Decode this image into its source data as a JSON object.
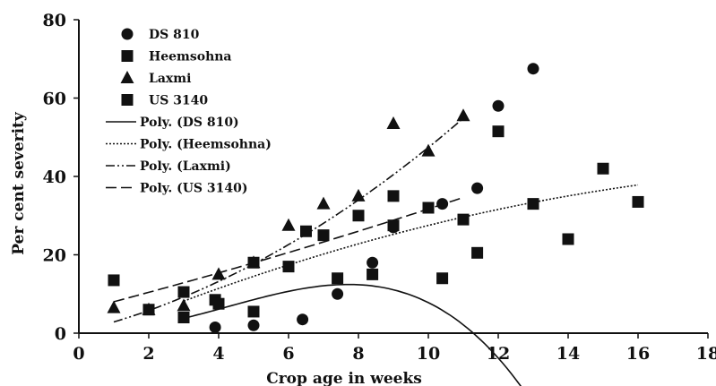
{
  "chart_data": {
    "type": "scatter",
    "title": "",
    "xlabel": "Crop age in  weeks",
    "ylabel": "Per cent severity",
    "xlim": [
      0,
      18
    ],
    "ylim": [
      0,
      80
    ],
    "x_ticks": [
      0,
      2,
      4,
      6,
      8,
      10,
      12,
      14,
      16,
      18
    ],
    "y_ticks": [
      0,
      20,
      40,
      60,
      80
    ],
    "grid": false,
    "legend_position": "top-left",
    "series": [
      {
        "name": "DS 810",
        "marker": "circle",
        "x": [
          3.9,
          5.0,
          6.4,
          7.4,
          8.4,
          9.0,
          10.4,
          11.4,
          12.0,
          13.0
        ],
        "y": [
          1.5,
          2.0,
          3.5,
          10.0,
          18.0,
          27.0,
          33.0,
          37.0,
          58.0,
          67.5
        ]
      },
      {
        "name": "Heemsohna",
        "marker": "square",
        "x": [
          2.0,
          3.0,
          3.9,
          5.0,
          6.0,
          7.4,
          8.4,
          9.0,
          10.4,
          11.4,
          13.0,
          14.0,
          15.0,
          16.0
        ],
        "y": [
          6.0,
          4.0,
          8.5,
          5.5,
          17.0,
          14.0,
          15.0,
          27.5,
          14.0,
          20.5,
          33.0,
          24.0,
          42.0,
          33.5
        ]
      },
      {
        "name": "Laxmi",
        "marker": "triangle",
        "x": [
          1.0,
          2.0,
          3.0,
          4.0,
          5.0,
          6.0,
          7.0,
          8.0,
          9.0,
          10.0,
          11.0
        ],
        "y": [
          6.5,
          6.0,
          7.0,
          15.0,
          18.0,
          27.5,
          33.0,
          35.0,
          53.5,
          46.5,
          55.5
        ]
      },
      {
        "name": "US 3140",
        "marker": "square",
        "x": [
          1.0,
          3.0,
          4.0,
          5.0,
          6.5,
          7.0,
          8.0,
          9.0,
          10.0,
          11.0,
          12.0
        ],
        "y": [
          13.5,
          10.5,
          7.5,
          18.0,
          26.0,
          25.0,
          30.0,
          35.0,
          32.0,
          29.0,
          51.5
        ]
      }
    ],
    "trendlines": [
      {
        "name": "Poly. (DS 810)",
        "style": "solid",
        "x_range": [
          3,
          13
        ],
        "coefficients": [
          1.8,
          -1.4,
          0.9,
          -0.07,
          0.0
        ]
      },
      {
        "name": "Poly. (Heemsohna)",
        "style": "dotted",
        "x_range": [
          3,
          16
        ],
        "coefficients": [
          -2.5,
          3.8,
          -0.08
        ]
      },
      {
        "name": "Poly. (Laxmi)",
        "style": "dash-dot-dot",
        "x_range": [
          1,
          11
        ],
        "coefficients": [
          0.4,
          2.2,
          0.25
        ]
      },
      {
        "name": "Poly. (US 3140)",
        "style": "dashed",
        "x_range": [
          1,
          11
        ],
        "coefficients": [
          5.7,
          2.3,
          0.03
        ]
      }
    ]
  }
}
